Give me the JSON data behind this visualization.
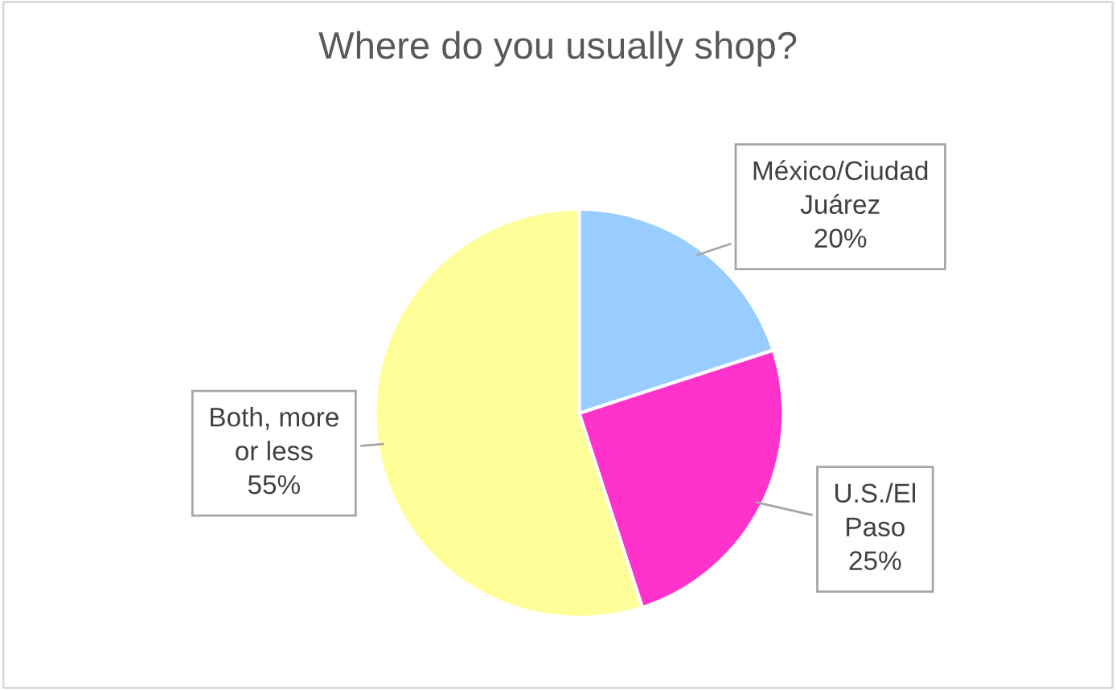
{
  "chart_data": {
    "type": "pie",
    "title": "Where do you usually shop?",
    "categories": [
      "México/Ciudad\nJuárez",
      "U.S./El\nPaso",
      "Both, more\nor less"
    ],
    "values": [
      20,
      25,
      55
    ],
    "colors": [
      "#99ccff",
      "#ff33cc",
      "#ffff99"
    ],
    "value_labels": [
      "20%",
      "25%",
      "55%"
    ],
    "legend": false
  }
}
